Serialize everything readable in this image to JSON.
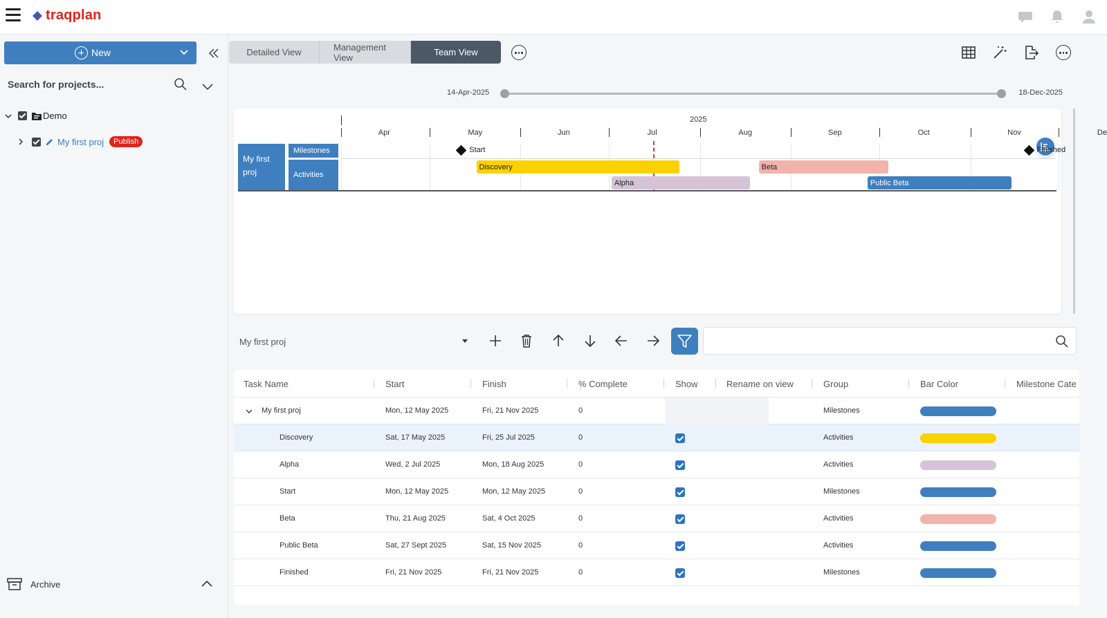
{
  "app": {
    "logo_text": "traqplan",
    "brand_color": "#e2231a",
    "accent_color": "#3f7fbf"
  },
  "header": {
    "icons": [
      "chat-icon",
      "bell-icon",
      "user-icon"
    ]
  },
  "sidebar": {
    "new_label": "New",
    "search_placeholder": "Search for projects...",
    "tree": [
      {
        "label": "Demo",
        "type": "folder",
        "checked": true,
        "expanded": true
      },
      {
        "label": "My first proj",
        "type": "project",
        "checked": true,
        "badge": "Publish"
      }
    ],
    "archive_label": "Archive"
  },
  "tabs": [
    {
      "label": "Detailed View",
      "active": false
    },
    {
      "label": "Management View",
      "active": false
    },
    {
      "label": "Team View",
      "active": true
    }
  ],
  "range": {
    "start": "14-Apr-2025",
    "end": "18-Dec-2025"
  },
  "gantt": {
    "year": "2025",
    "months": [
      "Apr",
      "May",
      "Jun",
      "Jul",
      "Aug",
      "Sep",
      "Oct",
      "Nov",
      "Dec"
    ],
    "project_label": "My first proj",
    "groups": [
      "Milestones",
      "Activities"
    ],
    "milestones": [
      {
        "label": "Start",
        "date": "2025-05-12"
      },
      {
        "label": "Finished",
        "date": "2025-11-21"
      }
    ],
    "bars": [
      {
        "label": "Discovery",
        "start": "2025-05-17",
        "end": "2025-07-25",
        "color": "#fbd200",
        "lane": 0
      },
      {
        "label": "Beta",
        "start": "2025-08-21",
        "end": "2025-10-04",
        "color": "#f2b3aa",
        "lane": 0
      },
      {
        "label": "Alpha",
        "start": "2025-07-02",
        "end": "2025-08-18",
        "color": "#d6c3d8",
        "lane": 1
      },
      {
        "label": "Public Beta",
        "start": "2025-09-27",
        "end": "2025-11-15",
        "color": "#3f7fbf",
        "lane": 1
      }
    ],
    "today_date": "2025-07-16"
  },
  "toolbar": {
    "project_select": "My first proj",
    "icons": [
      "add-icon",
      "delete-icon",
      "move-up-icon",
      "move-down-icon",
      "outdent-icon",
      "indent-icon"
    ],
    "search_value": ""
  },
  "table": {
    "columns": [
      "Task Name",
      "Start",
      "Finish",
      "% Complete",
      "Show",
      "Rename on view",
      "Group",
      "Bar Color",
      "Milestone Cate"
    ],
    "rows": [
      {
        "name": "My first proj",
        "start": "Mon, 12 May 2025",
        "finish": "Fri, 21 Nov 2025",
        "complete": "0",
        "show": false,
        "group": "Milestones",
        "color": "#3f7fbf",
        "level": 0
      },
      {
        "name": "Discovery",
        "start": "Sat, 17 May 2025",
        "finish": "Fri, 25 Jul 2025",
        "complete": "0",
        "show": true,
        "group": "Activities",
        "color": "#fbd200",
        "level": 1
      },
      {
        "name": "Alpha",
        "start": "Wed, 2 Jul 2025",
        "finish": "Mon, 18 Aug 2025",
        "complete": "0",
        "show": true,
        "group": "Activities",
        "color": "#d6c3d8",
        "level": 1
      },
      {
        "name": "Start",
        "start": "Mon, 12 May 2025",
        "finish": "Mon, 12 May 2025",
        "complete": "0",
        "show": true,
        "group": "Milestones",
        "color": "#3f7fbf",
        "level": 1
      },
      {
        "name": "Beta",
        "start": "Thu, 21 Aug 2025",
        "finish": "Sat, 4 Oct 2025",
        "complete": "0",
        "show": true,
        "group": "Activities",
        "color": "#f2b3aa",
        "level": 1
      },
      {
        "name": "Public Beta",
        "start": "Sat, 27 Sept 2025",
        "finish": "Sat, 15 Nov 2025",
        "complete": "0",
        "show": true,
        "group": "Activities",
        "color": "#3f7fbf",
        "level": 1
      },
      {
        "name": "Finished",
        "start": "Fri, 21 Nov 2025",
        "finish": "Fri, 21 Nov 2025",
        "complete": "0",
        "show": true,
        "group": "Milestones",
        "color": "#3f7fbf",
        "level": 1
      }
    ]
  }
}
